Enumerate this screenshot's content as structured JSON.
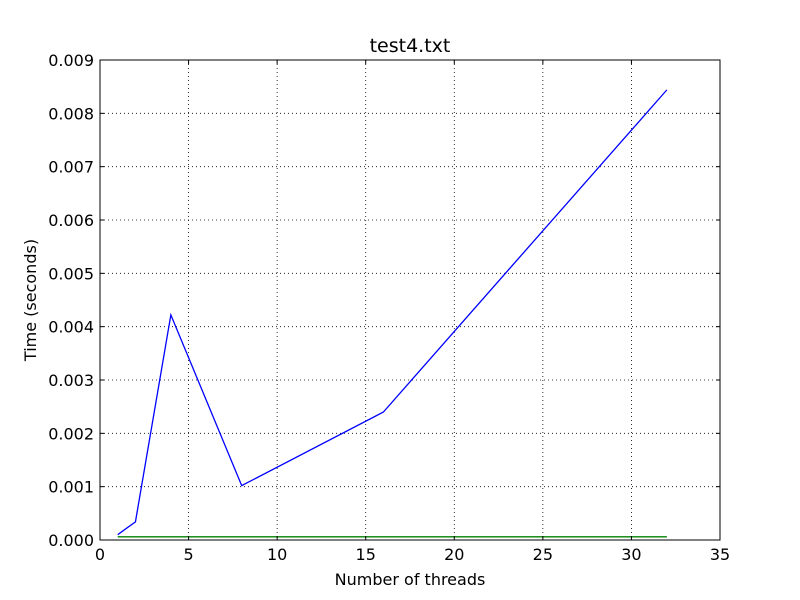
{
  "chart_data": {
    "type": "line",
    "title": "test4.txt",
    "xlabel": "Number of threads",
    "ylabel": "Time (seconds)",
    "xlim": [
      0,
      35
    ],
    "ylim": [
      0,
      0.009
    ],
    "xticks": [
      0,
      5,
      10,
      15,
      20,
      25,
      30,
      35
    ],
    "xtick_labels": [
      "0",
      "5",
      "10",
      "15",
      "20",
      "25",
      "30",
      "35"
    ],
    "yticks": [
      0,
      0.001,
      0.002,
      0.003,
      0.004,
      0.005,
      0.006,
      0.007,
      0.008,
      0.009
    ],
    "ytick_labels": [
      "0.000",
      "0.001",
      "0.002",
      "0.003",
      "0.004",
      "0.005",
      "0.006",
      "0.007",
      "0.008",
      "0.009"
    ],
    "grid": true,
    "series": [
      {
        "color": "#0000ff",
        "x": [
          1,
          2,
          4,
          8,
          16,
          32
        ],
        "y": [
          0.0001,
          0.00034,
          0.00422,
          0.00102,
          0.0024,
          0.00844
        ]
      },
      {
        "color": "#008000",
        "x": [
          1,
          2,
          4,
          8,
          16,
          32
        ],
        "y": [
          6e-05,
          6e-05,
          6e-05,
          6e-05,
          6e-05,
          6e-05
        ]
      }
    ]
  }
}
